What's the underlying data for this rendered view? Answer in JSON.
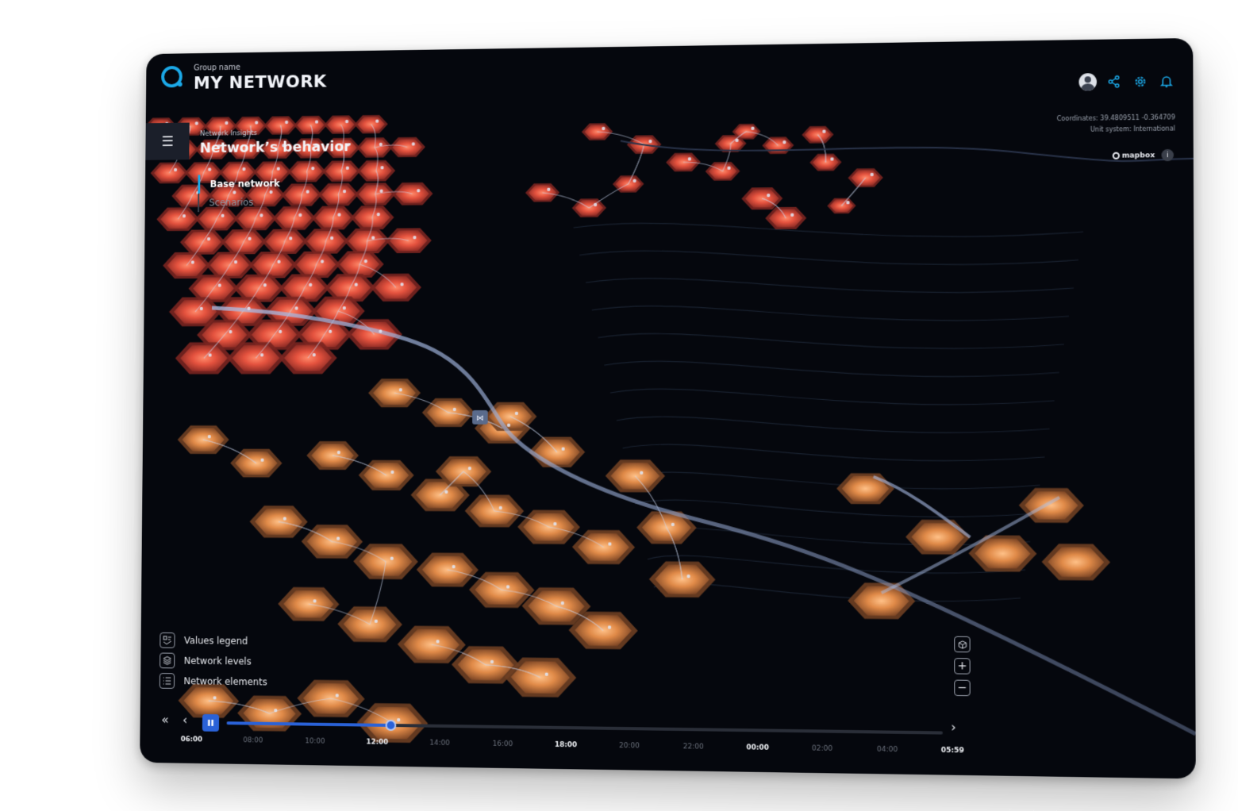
{
  "header": {
    "group_label": "Group name",
    "title": "MY NETWORK"
  },
  "section": {
    "subtitle": "Network Insights",
    "title": "Network’s behavior"
  },
  "subnav": {
    "active": "Base network",
    "inactive": "Scenarios"
  },
  "map_info": {
    "coordinates": "Coordinates: 39.4809511 -0.364709",
    "unit_system": "Unit system: International",
    "attribution": "mapbox"
  },
  "panel": {
    "items": [
      {
        "label": "Values legend",
        "icon": "legend-icon"
      },
      {
        "label": "Network levels",
        "icon": "layers-icon"
      },
      {
        "label": "Network elements",
        "icon": "list-icon"
      }
    ]
  },
  "timeline": {
    "progress": 0.235,
    "ticks": [
      "06:00",
      "08:00",
      "10:00",
      "12:00",
      "14:00",
      "16:00",
      "18:00",
      "20:00",
      "22:00",
      "00:00",
      "02:00",
      "04:00",
      "05:59"
    ],
    "bold_ticks": [
      "06:00",
      "12:00",
      "18:00",
      "00:00",
      "05:59"
    ]
  },
  "colors": {
    "accent": "#1ba9e8",
    "play": "#2a62d8",
    "hex_red": "#d9453a",
    "hex_orange": "#e08a45",
    "background": "#05070d"
  }
}
